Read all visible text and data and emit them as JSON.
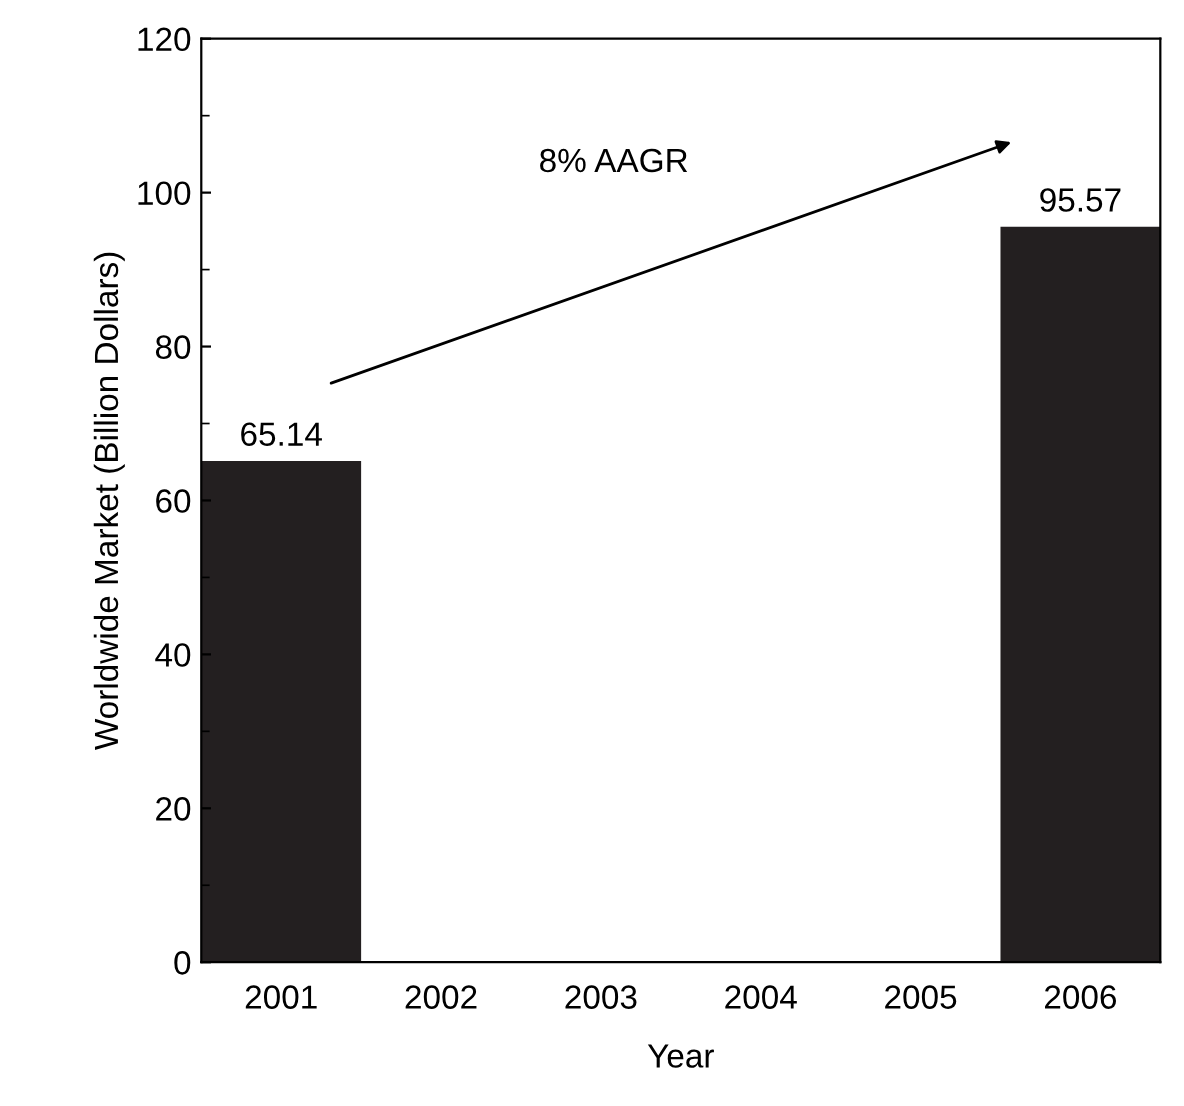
{
  "chart_data": {
    "type": "bar",
    "xlabel": "Year",
    "ylabel": "Worldwide Market (Billion Dollars)",
    "categories": [
      "2001",
      "2002",
      "2003",
      "2004",
      "2005",
      "2006"
    ],
    "values": [
      65.14,
      null,
      null,
      null,
      null,
      95.57
    ],
    "color": "#231f20",
    "value_labels": [
      "65.14",
      null,
      null,
      null,
      null,
      "95.57"
    ],
    "ylim": [
      0,
      120
    ],
    "yticks": [
      0,
      20,
      40,
      60,
      80,
      100,
      120
    ],
    "annotations": [
      "8% AAGR"
    ],
    "grid": false,
    "legend": false
  }
}
